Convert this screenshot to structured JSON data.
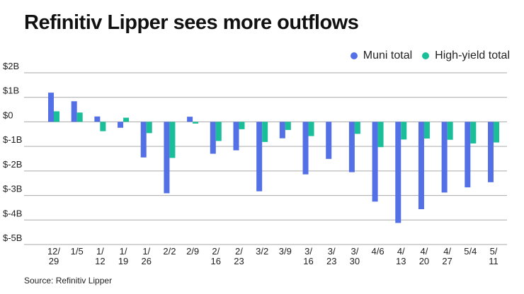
{
  "chart_data": {
    "type": "bar",
    "title": "Refinitiv Lipper sees more outflows",
    "source": "Source: Refinitiv Lipper",
    "categories": [
      [
        "12/",
        "29"
      ],
      [
        "1/5"
      ],
      [
        "1/",
        "12"
      ],
      [
        "1/",
        "19"
      ],
      [
        "1/",
        "26"
      ],
      [
        "2/2"
      ],
      [
        "2/9"
      ],
      [
        "2/",
        "16"
      ],
      [
        "2/",
        "23"
      ],
      [
        "3/2"
      ],
      [
        "3/9"
      ],
      [
        "3/",
        "16"
      ],
      [
        "3/",
        "23"
      ],
      [
        "3/",
        "30"
      ],
      [
        "4/6"
      ],
      [
        "4/",
        "13"
      ],
      [
        "4/",
        "20"
      ],
      [
        "4/",
        "27"
      ],
      [
        "5/4"
      ],
      [
        "5/",
        "11"
      ]
    ],
    "series": [
      {
        "name": "Muni total",
        "color": "#5470e6",
        "values": [
          1.19,
          0.84,
          0.22,
          -0.24,
          -1.45,
          -2.91,
          0.21,
          -1.3,
          -1.16,
          -2.83,
          -0.67,
          -2.14,
          -1.51,
          -2.05,
          -3.25,
          -4.12,
          -3.56,
          -2.88,
          -2.67,
          -2.46
        ]
      },
      {
        "name": "High-yield total",
        "color": "#1abf9a",
        "values": [
          0.43,
          0.38,
          -0.38,
          0.17,
          -0.46,
          -1.47,
          -0.07,
          -0.78,
          -0.3,
          -0.82,
          -0.33,
          -0.58,
          0,
          -0.49,
          -1.03,
          -0.72,
          -0.68,
          -0.73,
          -0.88,
          -0.84
        ]
      }
    ],
    "yticks": [
      2,
      1,
      0,
      -1,
      -2,
      -3,
      -4,
      -5
    ],
    "ytick_labels": [
      "$2B",
      "$1B",
      "$0",
      "$-1B",
      "$-2B",
      "$-3B",
      "$-4B",
      "$-5B"
    ],
    "ylim": [
      -5,
      2
    ],
    "yunit": "billions USD",
    "grid": true,
    "legend_position": "top-right"
  }
}
